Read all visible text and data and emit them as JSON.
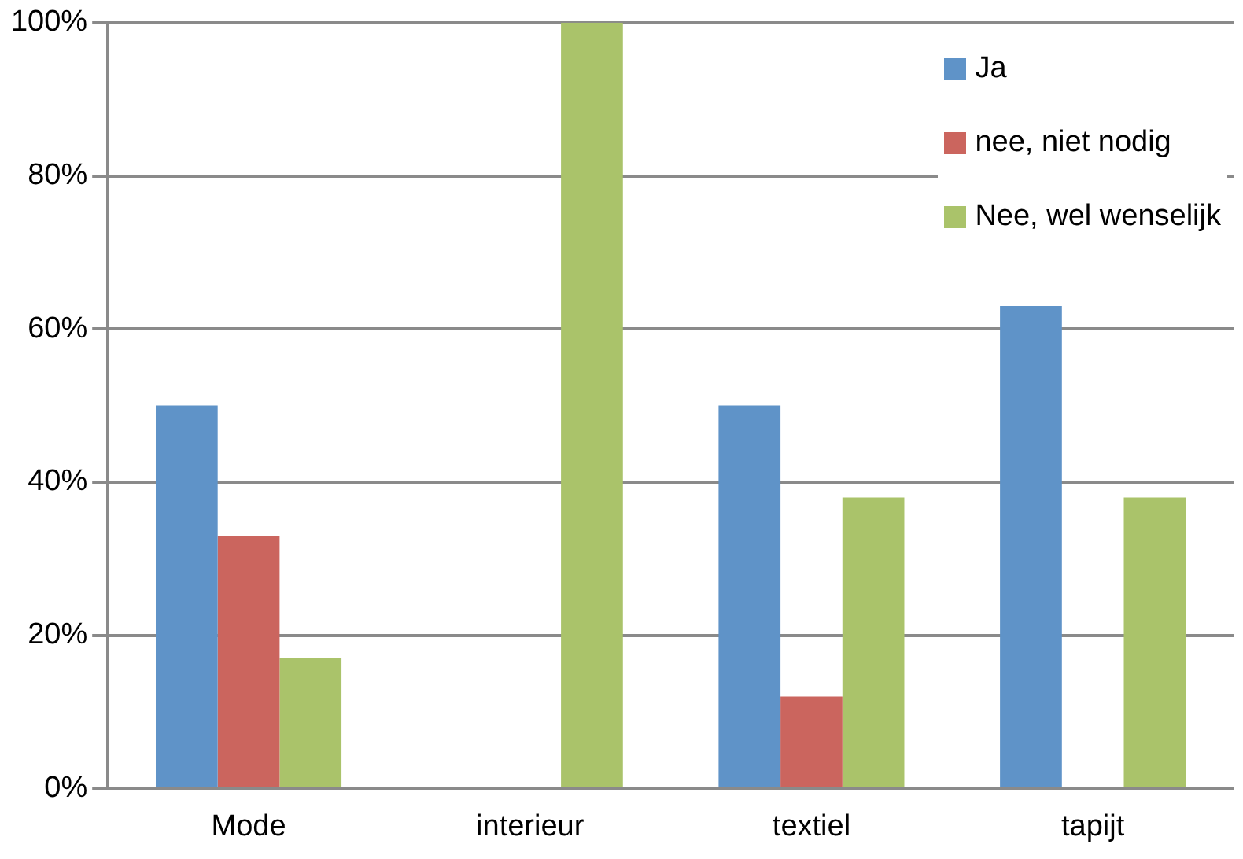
{
  "chart_data": {
    "type": "bar",
    "categories": [
      "Mode",
      "interieur",
      "textiel",
      "tapijt"
    ],
    "series": [
      {
        "name": "Ja",
        "color": "#5f93c8",
        "values": [
          50,
          0,
          50,
          63
        ]
      },
      {
        "name": "nee, niet nodig",
        "color": "#cb655e",
        "values": [
          33,
          0,
          12,
          0
        ]
      },
      {
        "name": "Nee, wel wenselijk",
        "color": "#aac36a",
        "values": [
          17,
          100,
          38,
          38
        ]
      }
    ],
    "ylim": [
      0,
      100
    ],
    "yticks": [
      {
        "value": 0,
        "label": "0%"
      },
      {
        "value": 20,
        "label": "20%"
      },
      {
        "value": 40,
        "label": "40%"
      },
      {
        "value": 60,
        "label": "60%"
      },
      {
        "value": 80,
        "label": "80%"
      },
      {
        "value": 100,
        "label": "100%"
      }
    ],
    "grid": "y",
    "legend": "top right"
  }
}
